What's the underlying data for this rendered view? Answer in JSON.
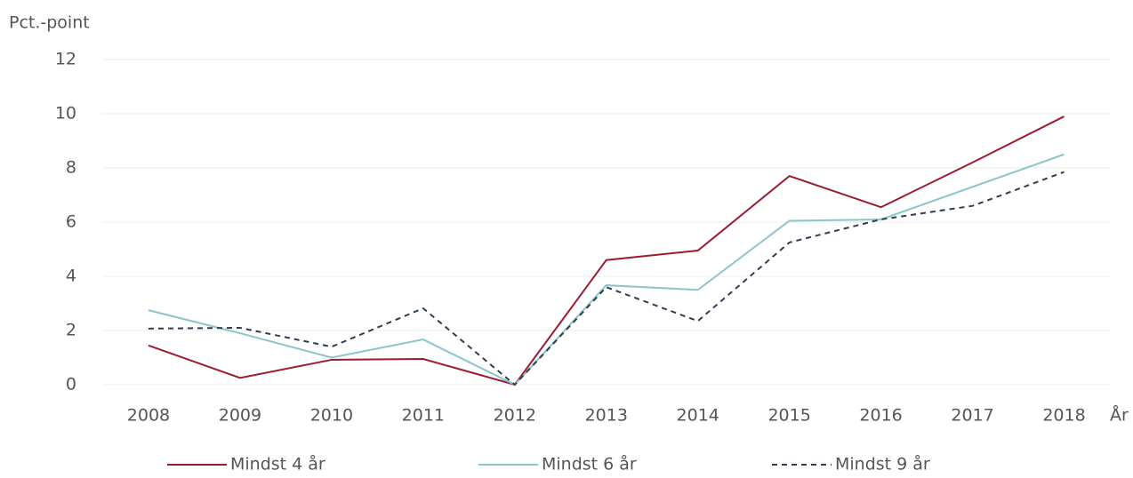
{
  "chart_data": {
    "type": "line",
    "y_label": "Pct.-point",
    "x_label": "År",
    "categories": [
      "2008",
      "2009",
      "2010",
      "2011",
      "2012",
      "2013",
      "2014",
      "2015",
      "2016",
      "2017",
      "2018"
    ],
    "series": [
      {
        "name": "Mindst 4 år",
        "color": "#9b1b30",
        "line_style": "solid",
        "values": [
          1.45,
          0.25,
          0.92,
          0.95,
          0,
          4.6,
          4.95,
          7.7,
          6.55,
          8.2,
          9.9
        ]
      },
      {
        "name": "Mindst 6 år",
        "color": "#8cc5c9",
        "line_style": "solid",
        "values": [
          2.75,
          1.9,
          1.0,
          1.67,
          0,
          3.67,
          3.5,
          6.05,
          6.1,
          7.3,
          8.5
        ]
      },
      {
        "name": "Mindst 9 år",
        "color": "#2e3d50",
        "line_style": "dashed",
        "values": [
          2.07,
          2.1,
          1.4,
          2.82,
          0,
          3.6,
          2.35,
          5.25,
          6.1,
          6.6,
          7.85
        ]
      }
    ],
    "ylim": [
      0,
      12
    ],
    "yticks": [
      0,
      2,
      4,
      6,
      8,
      10,
      12
    ],
    "grid": true,
    "legend": "bottom"
  }
}
